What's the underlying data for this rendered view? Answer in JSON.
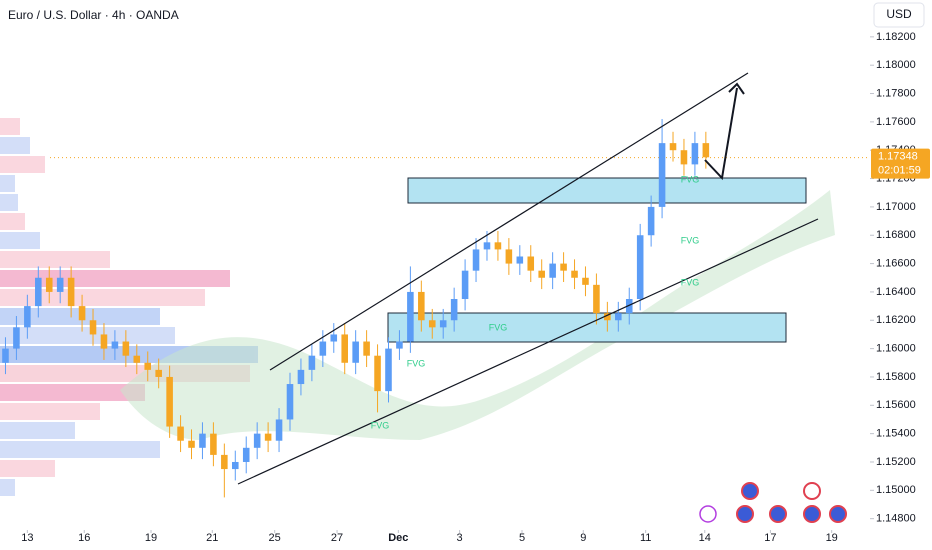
{
  "chart_data": {
    "type": "candlestick",
    "title": "Euro / U.S. Dollar · 4h · OANDA",
    "currency": "USD",
    "last_price": 1.17348,
    "countdown": "02:01:59",
    "up_color": "#5b9cf6",
    "down_color": "#f5a623",
    "annotations": [
      "FVG",
      "FVG",
      "FVG",
      "FVG",
      "FVG",
      "FVG"
    ],
    "xlim": [
      -0.5,
      79
    ],
    "xticks": [
      {
        "value": 2,
        "label": "13"
      },
      {
        "value": 7.2,
        "label": "16"
      },
      {
        "value": 13.3,
        "label": "19"
      },
      {
        "value": 18.9,
        "label": "21"
      },
      {
        "value": 24.6,
        "label": "25"
      },
      {
        "value": 30.3,
        "label": "27"
      },
      {
        "value": 35.9,
        "label": "Dec"
      },
      {
        "value": 41.5,
        "label": "3"
      },
      {
        "value": 47.2,
        "label": "5"
      },
      {
        "value": 52.8,
        "label": "9"
      },
      {
        "value": 58.5,
        "label": "11"
      },
      {
        "value": 63.9,
        "label": "14"
      },
      {
        "value": 69.9,
        "label": "17"
      },
      {
        "value": 75.5,
        "label": "19"
      }
    ],
    "ylim": [
      1.1472,
      1.1846
    ],
    "yticks": [
      {
        "value": 1.148,
        "label": "1.14800"
      },
      {
        "value": 1.15,
        "label": "1.15000"
      },
      {
        "value": 1.152,
        "label": "1.15200"
      },
      {
        "value": 1.154,
        "label": "1.15400"
      },
      {
        "value": 1.156,
        "label": "1.15600"
      },
      {
        "value": 1.158,
        "label": "1.15800"
      },
      {
        "value": 1.16,
        "label": "1.16000"
      },
      {
        "value": 1.162,
        "label": "1.16200"
      },
      {
        "value": 1.164,
        "label": "1.16400"
      },
      {
        "value": 1.166,
        "label": "1.16600"
      },
      {
        "value": 1.168,
        "label": "1.16800"
      },
      {
        "value": 1.17,
        "label": "1.17000"
      },
      {
        "value": 1.172,
        "label": "1.17200"
      },
      {
        "value": 1.174,
        "label": "1.17400"
      },
      {
        "value": 1.176,
        "label": "1.17600"
      },
      {
        "value": 1.178,
        "label": "1.17800"
      },
      {
        "value": 1.18,
        "label": "1.18000"
      },
      {
        "value": 1.182,
        "label": "1.18200"
      }
    ],
    "open": [
      1.159,
      1.16,
      1.1615,
      1.163,
      1.165,
      1.164,
      1.165,
      1.163,
      1.162,
      1.161,
      1.16,
      1.1605,
      1.1595,
      1.159,
      1.1585,
      1.158,
      1.1545,
      1.1535,
      1.153,
      1.154,
      1.1525,
      1.1515,
      1.152,
      1.153,
      1.154,
      1.1535,
      1.155,
      1.1575,
      1.1585,
      1.1595,
      1.1605,
      1.161,
      1.159,
      1.1605,
      1.1595,
      1.157,
      1.16,
      1.1605,
      1.164,
      1.162,
      1.1615,
      1.162,
      1.1635,
      1.1655,
      1.167,
      1.1675,
      1.167,
      1.166,
      1.1665,
      1.1655,
      1.165,
      1.166,
      1.1655,
      1.165,
      1.1645,
      1.1625,
      1.162,
      1.1625,
      1.1635,
      1.168,
      1.17,
      1.1745,
      1.174,
      1.173,
      1.1745
    ],
    "high": [
      1.1608,
      1.1623,
      1.1638,
      1.1658,
      1.1658,
      1.1658,
      1.1658,
      1.1638,
      1.1628,
      1.1618,
      1.1613,
      1.1613,
      1.1603,
      1.1598,
      1.1593,
      1.1588,
      1.1553,
      1.1543,
      1.1548,
      1.1548,
      1.1533,
      1.1528,
      1.1538,
      1.1548,
      1.1548,
      1.1558,
      1.1583,
      1.1593,
      1.1603,
      1.1613,
      1.1618,
      1.1618,
      1.1613,
      1.1613,
      1.1603,
      1.1608,
      1.1613,
      1.1658,
      1.1648,
      1.1628,
      1.1628,
      1.1643,
      1.1663,
      1.1678,
      1.1683,
      1.1683,
      1.1678,
      1.1673,
      1.1673,
      1.1663,
      1.1668,
      1.1668,
      1.1663,
      1.1658,
      1.1653,
      1.1633,
      1.1633,
      1.1643,
      1.1688,
      1.1708,
      1.1762,
      1.1753,
      1.1748,
      1.1753,
      1.1753
    ],
    "low": [
      1.1582,
      1.1592,
      1.1607,
      1.1622,
      1.1632,
      1.1632,
      1.1622,
      1.1612,
      1.1602,
      1.1592,
      1.1592,
      1.1587,
      1.1582,
      1.1577,
      1.1572,
      1.1537,
      1.1527,
      1.1522,
      1.1522,
      1.1517,
      1.1495,
      1.1507,
      1.1512,
      1.1522,
      1.1527,
      1.1527,
      1.1542,
      1.1567,
      1.1577,
      1.1587,
      1.1597,
      1.1582,
      1.1582,
      1.1587,
      1.1555,
      1.1562,
      1.1592,
      1.1597,
      1.1612,
      1.1607,
      1.1607,
      1.1612,
      1.1627,
      1.1647,
      1.1662,
      1.1662,
      1.1652,
      1.1652,
      1.1647,
      1.1642,
      1.1642,
      1.1647,
      1.1642,
      1.1637,
      1.1617,
      1.1612,
      1.1612,
      1.1617,
      1.1627,
      1.1672,
      1.1692,
      1.1732,
      1.1722,
      1.1722,
      1.1727
    ],
    "close": [
      1.16,
      1.1615,
      1.163,
      1.165,
      1.164,
      1.165,
      1.163,
      1.162,
      1.161,
      1.16,
      1.1605,
      1.1595,
      1.159,
      1.1585,
      1.158,
      1.1545,
      1.1535,
      1.153,
      1.154,
      1.1525,
      1.1515,
      1.152,
      1.153,
      1.154,
      1.1535,
      1.155,
      1.1575,
      1.1585,
      1.1595,
      1.1605,
      1.161,
      1.159,
      1.1605,
      1.1595,
      1.157,
      1.16,
      1.1605,
      1.164,
      1.162,
      1.1615,
      1.162,
      1.1635,
      1.1655,
      1.167,
      1.1675,
      1.167,
      1.166,
      1.1665,
      1.1655,
      1.165,
      1.166,
      1.1655,
      1.165,
      1.1645,
      1.1625,
      1.162,
      1.1625,
      1.1635,
      1.168,
      1.17,
      1.1745,
      1.174,
      1.173,
      1.1745,
      1.1735
    ]
  }
}
